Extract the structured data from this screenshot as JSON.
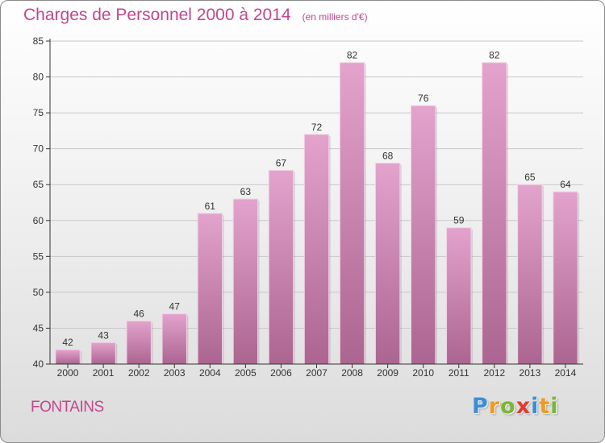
{
  "header": {
    "title": "Charges de Personnel 2000 à 2014",
    "unit": "(en milliers d'€)"
  },
  "chart_data": {
    "type": "bar",
    "title": "Charges de Personnel 2000 à 2014",
    "subtitle": "(en milliers d'€)",
    "xlabel": "",
    "ylabel": "",
    "categories": [
      "2000",
      "2001",
      "2002",
      "2003",
      "2004",
      "2005",
      "2006",
      "2007",
      "2008",
      "2009",
      "2010",
      "2011",
      "2012",
      "2013",
      "2014"
    ],
    "values": [
      42,
      43,
      46,
      47,
      61,
      63,
      67,
      72,
      82,
      68,
      76,
      59,
      82,
      65,
      64
    ],
    "ylim": [
      40,
      85
    ],
    "yticks": [
      40,
      45,
      50,
      55,
      60,
      65,
      70,
      75,
      80,
      85
    ],
    "grid": true,
    "bar_color": "#d98fbf",
    "bar_color_dark": "#b0678f",
    "data_labels": true
  },
  "footer": {
    "commune": "FONTAINS",
    "logo_letters": [
      {
        "char": "P",
        "color": "#3a8fd6"
      },
      {
        "char": "r",
        "color": "#f39a1e"
      },
      {
        "char": "o",
        "color": "#79b833"
      },
      {
        "char": "x",
        "color": "#e53a2f"
      },
      {
        "char": "i",
        "color": "#3a8fd6"
      },
      {
        "char": "t",
        "color": "#f39a1e"
      },
      {
        "char": "i",
        "color": "#79b833"
      }
    ]
  },
  "colors": {
    "accent": "#c0478e",
    "axis": "#333333",
    "grid": "#c8c8c8"
  }
}
